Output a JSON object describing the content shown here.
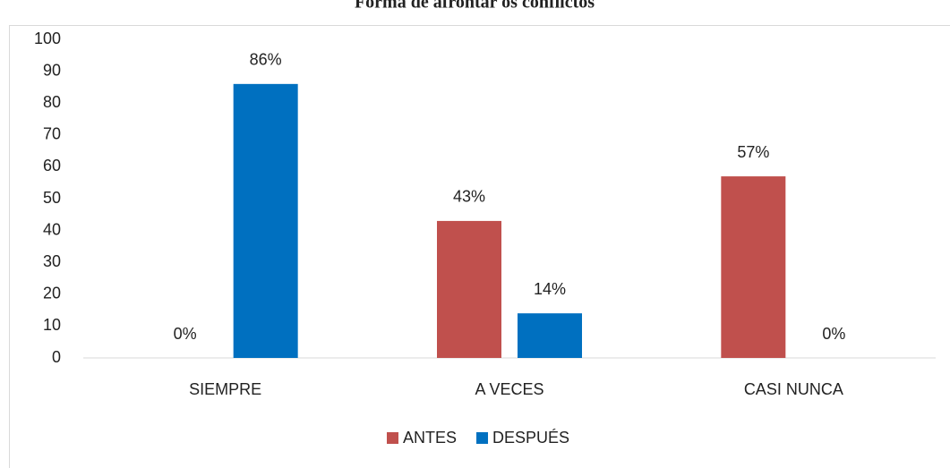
{
  "chart_data": {
    "type": "bar",
    "title": "Forma de afrontar os conflictos",
    "categories": [
      "SIEMPRE",
      "A VECES",
      "CASI NUNCA"
    ],
    "series": [
      {
        "name": "ANTES",
        "color": "#c0504d",
        "values": [
          0,
          43,
          57
        ],
        "value_labels": [
          "0%",
          "43%",
          "57%"
        ]
      },
      {
        "name": "DESPUÉS",
        "color": "#0070c0",
        "values": [
          86,
          14,
          0
        ],
        "value_labels": [
          "86%",
          "14%",
          "0%"
        ]
      }
    ],
    "ylim": [
      0,
      100
    ],
    "yticks": [
      0,
      10,
      20,
      30,
      40,
      50,
      60,
      70,
      80,
      90,
      100
    ],
    "grid": false,
    "legend": "bottom"
  }
}
